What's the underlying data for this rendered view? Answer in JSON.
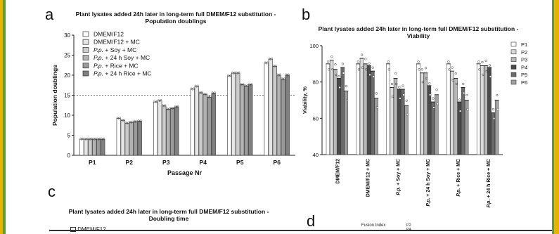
{
  "panels": {
    "a": "a",
    "b": "b",
    "c": "c",
    "d": "d"
  },
  "titles": {
    "a1": "Plant lysates added 24h later in long-term full DMEM/F12 substitution -",
    "a2": "Population doublings",
    "b1": "Plant lysates added 24h later in long-term full DMEM/F12 substitution -",
    "b2": "Viability",
    "c1": "Plant lysates added 24h later in long-term full DMEM/F12 substitution -",
    "c2": "Doubling time"
  },
  "partial": {
    "c_legend": "DMEM/F12",
    "d_label": "Fusion Index",
    "d_p2": "P2",
    "d_p4": "P4"
  },
  "colors": {
    "accent_yellow": "#e8b300",
    "accent_green": "#5aa02c"
  },
  "chart_data": [
    {
      "type": "bar",
      "title": "Plant lysates added 24h later in long-term full DMEM/F12 substitution - Population doublings",
      "xlabel": "Passage Nr",
      "ylabel": "Population doublings",
      "ylim": [
        0,
        30
      ],
      "yticks": [
        0,
        5,
        10,
        15,
        20,
        25,
        30
      ],
      "reference_line": 15,
      "categories": [
        "P1",
        "P2",
        "P3",
        "P4",
        "P5",
        "P6"
      ],
      "legend_position": "top-left",
      "series": [
        {
          "name": "DMEM/F12",
          "values": [
            4.0,
            9.2,
            13.3,
            16.5,
            19.8,
            23.0
          ]
        },
        {
          "name": "DMEM/F12 + MC",
          "values": [
            4.0,
            8.7,
            13.6,
            17.2,
            20.5,
            24.0
          ]
        },
        {
          "name": "P.p. + Soy + MC",
          "values": [
            4.0,
            8.0,
            12.3,
            15.6,
            20.5,
            22.2
          ]
        },
        {
          "name": "P.p. + 24 h Soy + MC",
          "values": [
            4.0,
            8.2,
            11.5,
            15.2,
            17.6,
            20.0
          ]
        },
        {
          "name": "P.p. + Rice + MC",
          "values": [
            4.0,
            8.4,
            11.7,
            14.5,
            17.3,
            19.0
          ]
        },
        {
          "name": "P.p. + 24 h Rice + MC",
          "values": [
            4.0,
            8.5,
            12.1,
            15.5,
            17.6,
            20.0
          ]
        }
      ]
    },
    {
      "type": "bar",
      "title": "Plant lysates added 24h later in long-term full DMEM/F12 substitution - Viability",
      "ylabel": "Viability, %",
      "ylim": [
        40,
        100
      ],
      "yticks": [
        40,
        60,
        80,
        100
      ],
      "categories": [
        "DMEM/F12",
        "DMEM/F12 + MC",
        "P.p. + Soy + MC",
        "P.p. + 24 h Soy + MC",
        "P.p. + Rice + MC",
        "P.p. + 24 h Rice + MC"
      ],
      "legend_position": "right",
      "series": [
        {
          "name": "P1",
          "values": [
            90,
            90,
            90,
            90,
            90,
            90
          ]
        },
        {
          "name": "P2",
          "values": [
            92,
            93,
            77,
            85,
            86,
            89
          ]
        },
        {
          "name": "P3",
          "values": [
            87,
            90,
            82,
            85,
            82,
            89
          ]
        },
        {
          "name": "P4",
          "values": [
            82,
            89,
            76,
            78,
            69,
            88
          ]
        },
        {
          "name": "P5",
          "values": [
            88,
            86,
            76,
            69,
            77,
            63
          ]
        },
        {
          "name": "P6",
          "values": [
            75,
            71,
            67,
            73,
            70,
            70
          ]
        }
      ]
    }
  ]
}
